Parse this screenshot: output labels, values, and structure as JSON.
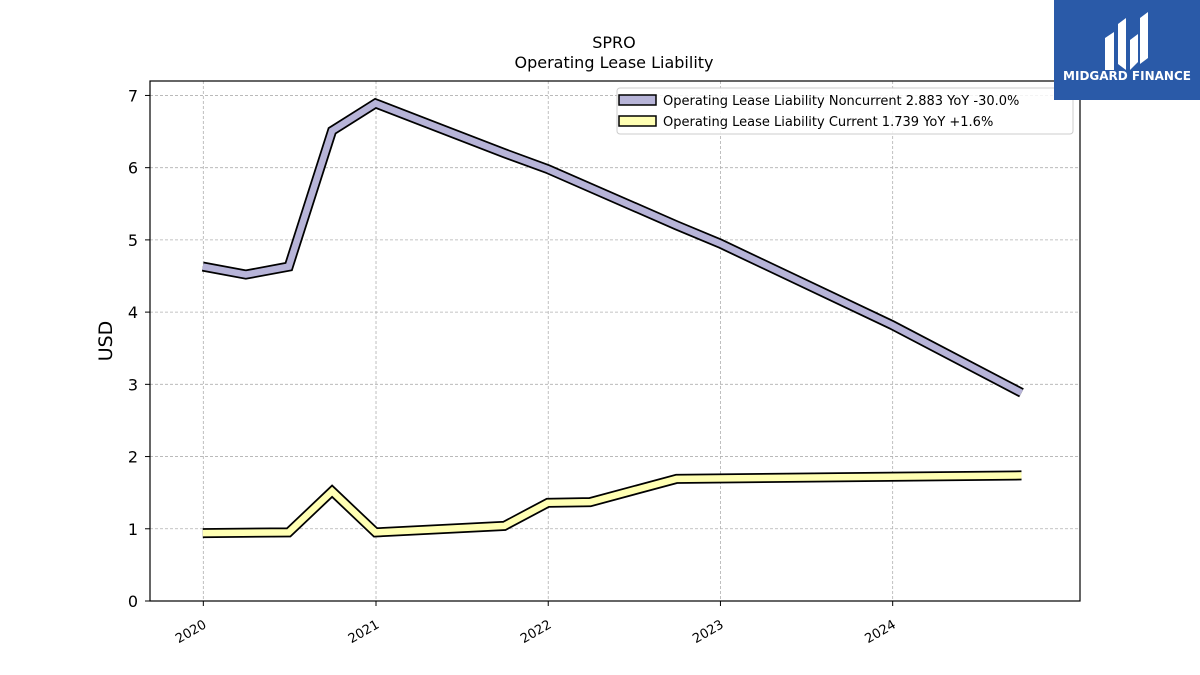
{
  "brand": {
    "name": "MIDGARD FINANCE",
    "color": "#2a5aa8",
    "icon": "midgard-logo-icon"
  },
  "chart_data": {
    "type": "line",
    "title": "SPRO",
    "subtitle": "Operating Lease Liability",
    "ylabel": "USD",
    "xlabel": "",
    "ylim": [
      0,
      7.2
    ],
    "xlim": [
      "2019-09-10",
      "2025-02-01"
    ],
    "yticks": [
      0,
      1,
      2,
      3,
      4,
      5,
      6,
      7
    ],
    "xticks": [
      "2020",
      "2021",
      "2022",
      "2023",
      "2024"
    ],
    "grid": true,
    "legend_position": "top-right",
    "series": [
      {
        "name": "Operating Lease Liability Noncurrent  2.883 YoY -30.0%",
        "color": "#b7b4d8",
        "points": [
          [
            "2019-12-31",
            4.63
          ],
          [
            "2020-03-31",
            4.52
          ],
          [
            "2020-06-30",
            4.63
          ],
          [
            "2020-09-30",
            6.51
          ],
          [
            "2020-12-31",
            6.89
          ],
          [
            "2021-09-30",
            6.2
          ],
          [
            "2021-12-31",
            5.98
          ],
          [
            "2022-09-30",
            5.2
          ],
          [
            "2022-12-31",
            4.95
          ],
          [
            "2023-12-31",
            3.82
          ],
          [
            "2024-09-30",
            2.883
          ]
        ]
      },
      {
        "name": "Operating Lease Liability Current  1.739 YoY +1.6%",
        "color": "#ffffb3",
        "points": [
          [
            "2019-12-31",
            0.94
          ],
          [
            "2020-06-30",
            0.95
          ],
          [
            "2020-09-30",
            1.52
          ],
          [
            "2020-12-31",
            0.95
          ],
          [
            "2021-09-30",
            1.04
          ],
          [
            "2021-12-31",
            1.36
          ],
          [
            "2022-03-31",
            1.37
          ],
          [
            "2022-09-30",
            1.69
          ],
          [
            "2024-09-30",
            1.739
          ]
        ]
      }
    ]
  }
}
